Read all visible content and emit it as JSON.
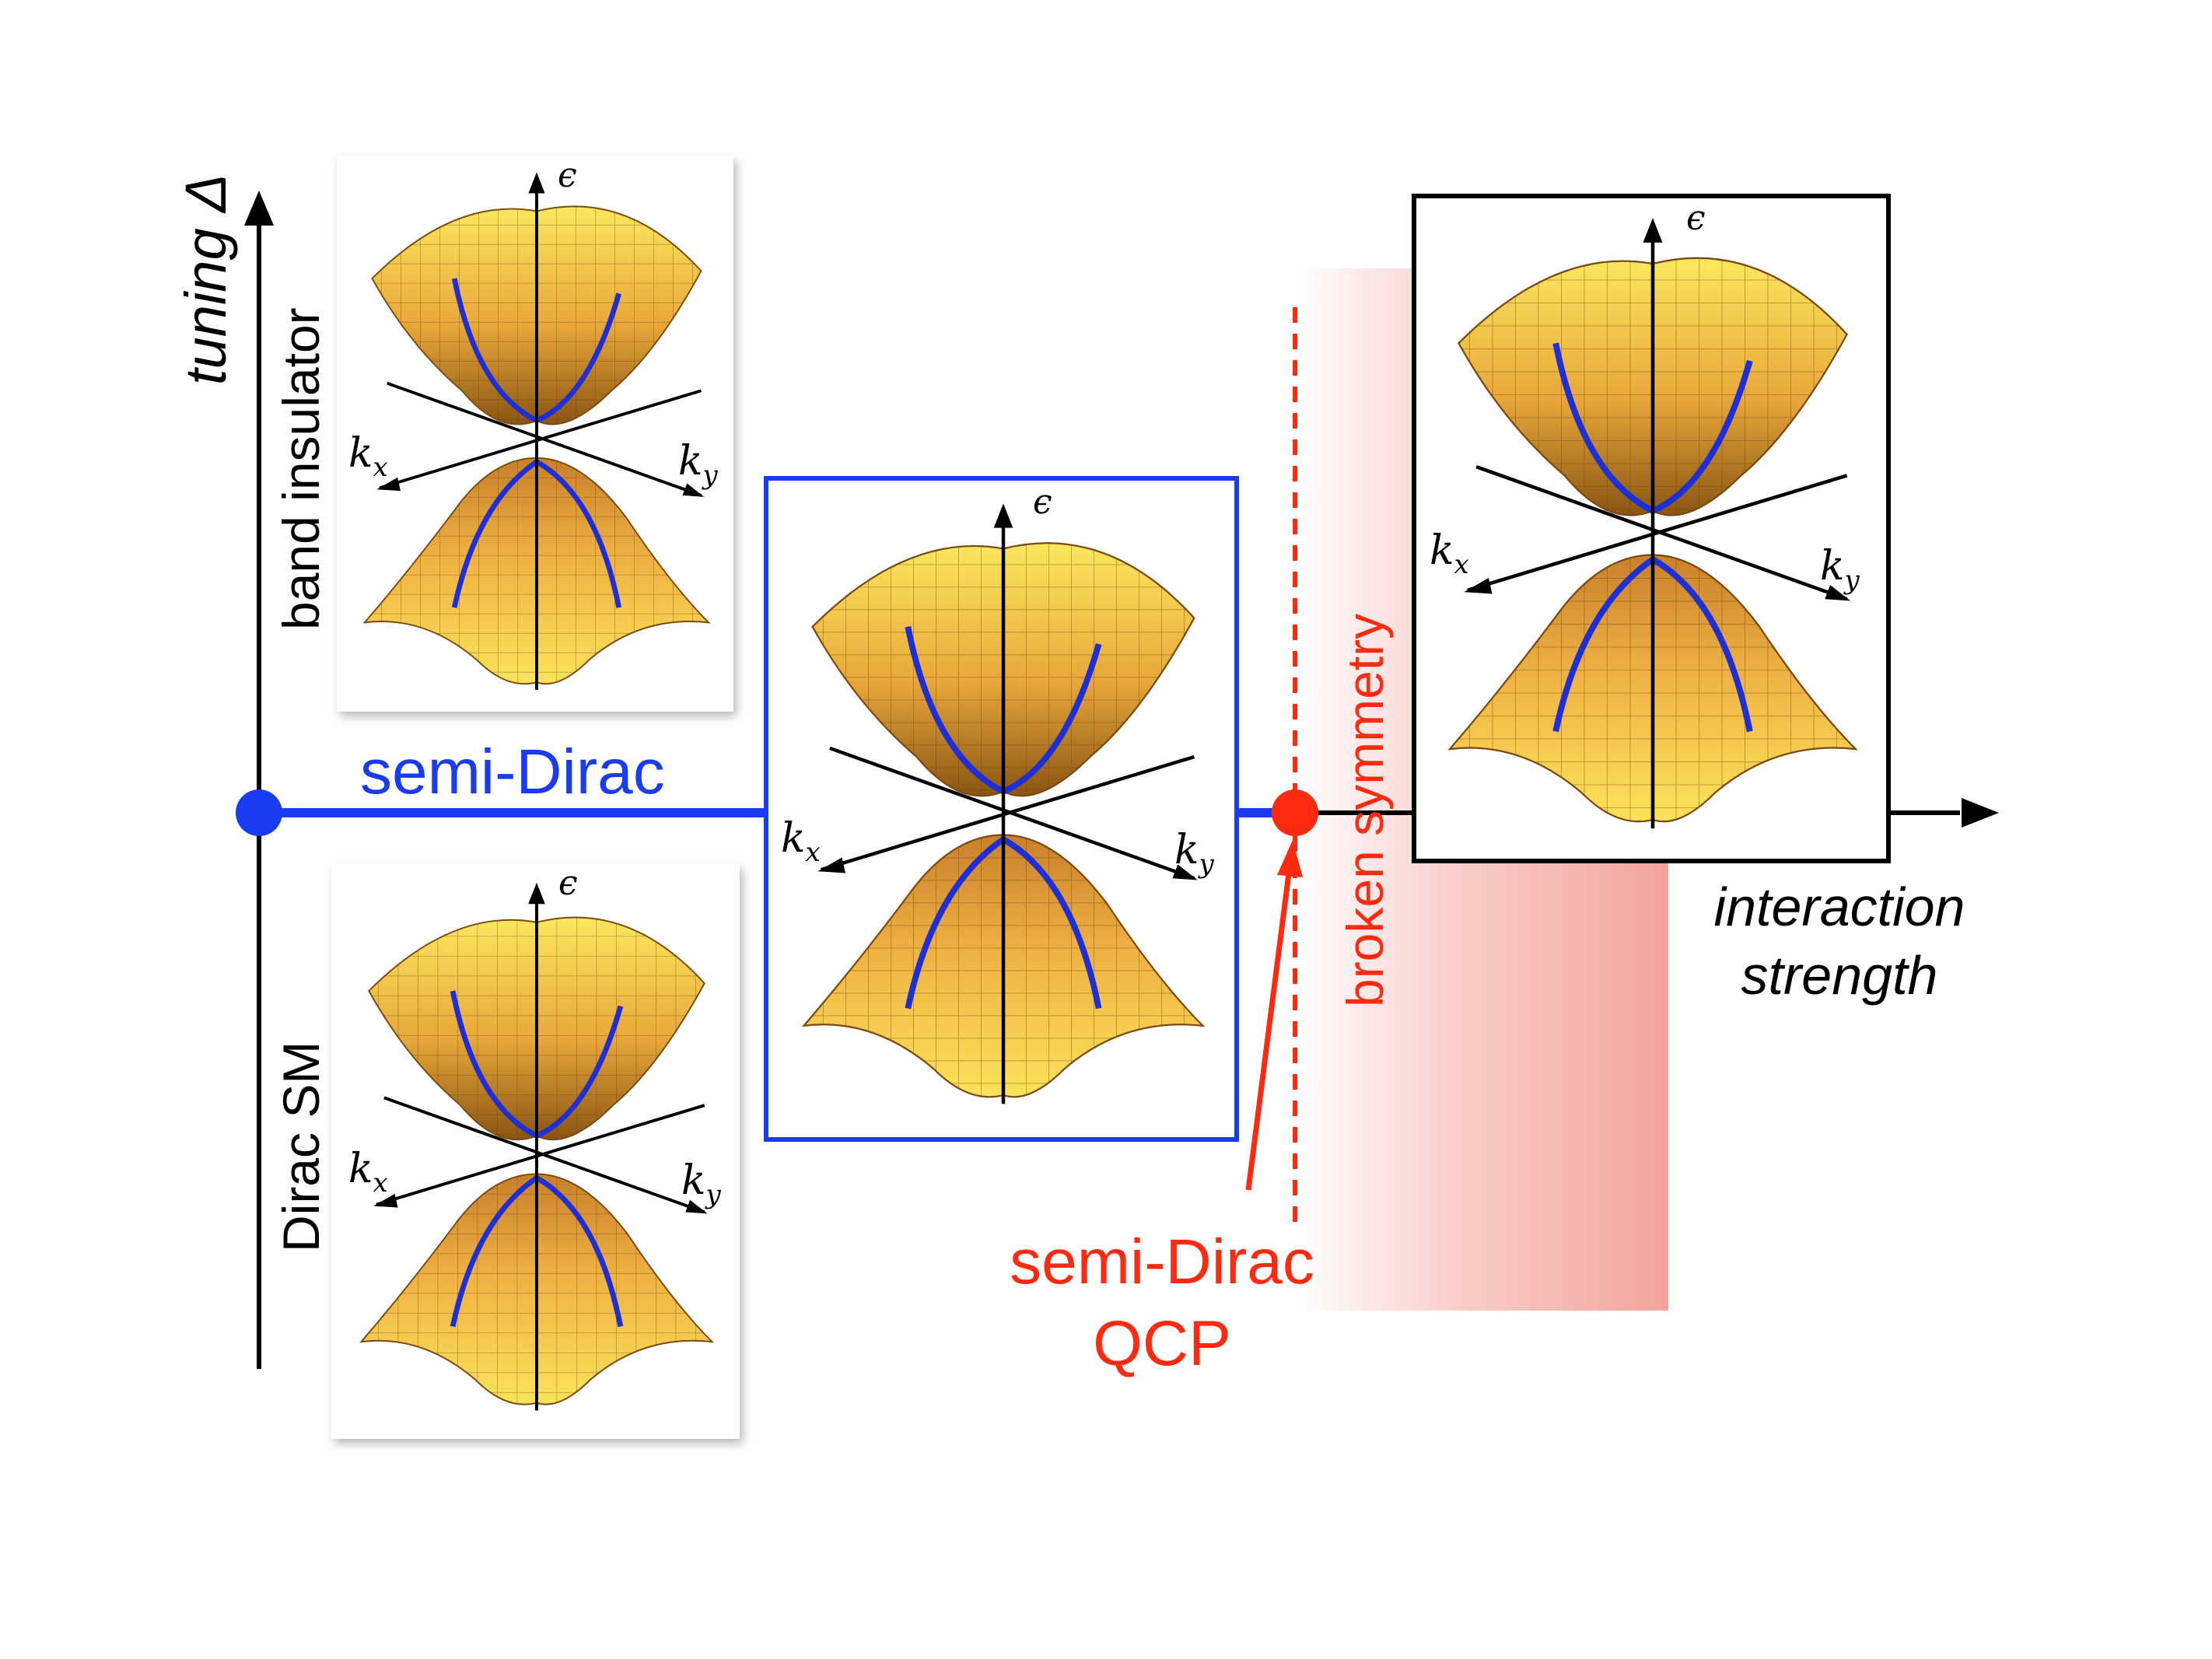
{
  "axes": {
    "vertical_label": "tuning Δ",
    "horizontal_label_line1": "interaction",
    "horizontal_label_line2": "strength"
  },
  "phases": {
    "band_insulator": "band insulator",
    "dirac_sm": "Dirac SM",
    "semi_dirac": "semi-Dirac",
    "broken_symmetry": "broken symmetry"
  },
  "qcp": {
    "line1": "semi-Dirac",
    "line2": "QCP"
  },
  "panel_labels": {
    "energy": "ϵ",
    "kx_base": "k",
    "kx_sub": "x",
    "ky_base": "k",
    "ky_sub": "y"
  },
  "colors": {
    "semi_dirac_blue": "#1a3cf0",
    "qcp_red": "#ff2a10",
    "shade_red": "#f4a39c",
    "surface_light": "#f9e45a",
    "surface_dark": "#b9761d",
    "band_line": "#1f2fd6",
    "axis": "#000000"
  },
  "icons": {
    "axis_arrow": "arrow-head-icon",
    "critical_point": "dot-icon"
  }
}
